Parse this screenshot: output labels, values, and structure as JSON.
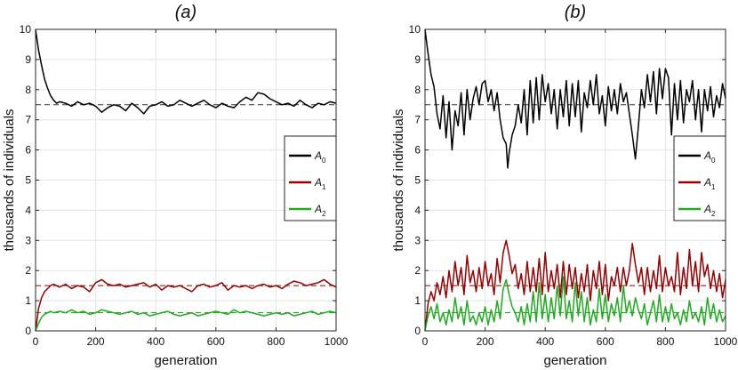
{
  "chart_data": [
    {
      "type": "line",
      "panel_label": "(a)",
      "xlabel": "generation",
      "ylabel": "thousands of individuals",
      "xlim": [
        0,
        1000
      ],
      "ylim": [
        0,
        10
      ],
      "xticks": [
        "0",
        "200",
        "400",
        "600",
        "800",
        "1000"
      ],
      "yticks": [
        "0",
        "1",
        "2",
        "3",
        "4",
        "5",
        "6",
        "7",
        "8",
        "9",
        "10"
      ],
      "grid": true,
      "legend_position": "right-middle",
      "reference_lines": [
        {
          "name": "A0 equilibrium",
          "y": 7.5,
          "color": "#333333"
        },
        {
          "name": "A1 equilibrium",
          "y": 1.5,
          "color": "#8b0000"
        },
        {
          "name": "A2 equilibrium",
          "y": 0.6,
          "color": "#00a000"
        }
      ],
      "series": [
        {
          "name": "A",
          "sub": "0",
          "color": "#000000",
          "x": [
            0,
            10,
            20,
            30,
            40,
            50,
            60,
            70,
            80,
            100,
            120,
            140,
            160,
            180,
            200,
            220,
            240,
            260,
            280,
            300,
            320,
            340,
            360,
            380,
            400,
            420,
            440,
            460,
            480,
            500,
            520,
            540,
            560,
            580,
            600,
            620,
            640,
            660,
            680,
            700,
            720,
            740,
            760,
            780,
            800,
            820,
            840,
            860,
            880,
            900,
            920,
            940,
            960,
            980,
            1000
          ],
          "values": [
            10.0,
            9.3,
            8.8,
            8.35,
            8.05,
            7.8,
            7.65,
            7.55,
            7.6,
            7.55,
            7.45,
            7.6,
            7.5,
            7.55,
            7.45,
            7.25,
            7.4,
            7.5,
            7.45,
            7.3,
            7.55,
            7.4,
            7.2,
            7.45,
            7.5,
            7.6,
            7.45,
            7.5,
            7.65,
            7.55,
            7.45,
            7.55,
            7.65,
            7.5,
            7.4,
            7.55,
            7.45,
            7.4,
            7.6,
            7.75,
            7.65,
            7.9,
            7.85,
            7.7,
            7.6,
            7.5,
            7.55,
            7.45,
            7.65,
            7.5,
            7.4,
            7.55,
            7.5,
            7.6,
            7.55
          ]
        },
        {
          "name": "A",
          "sub": "1",
          "color": "#990000",
          "x": [
            0,
            10,
            20,
            30,
            40,
            50,
            60,
            80,
            100,
            120,
            140,
            160,
            180,
            200,
            220,
            240,
            260,
            280,
            300,
            320,
            340,
            360,
            380,
            400,
            420,
            440,
            460,
            480,
            500,
            520,
            540,
            560,
            580,
            600,
            620,
            640,
            660,
            680,
            700,
            720,
            740,
            760,
            780,
            800,
            820,
            840,
            860,
            880,
            900,
            920,
            940,
            960,
            980,
            1000
          ],
          "values": [
            0.0,
            0.75,
            1.1,
            1.3,
            1.4,
            1.5,
            1.55,
            1.45,
            1.55,
            1.4,
            1.5,
            1.45,
            1.3,
            1.6,
            1.7,
            1.55,
            1.5,
            1.55,
            1.45,
            1.5,
            1.55,
            1.6,
            1.45,
            1.55,
            1.35,
            1.5,
            1.45,
            1.5,
            1.4,
            1.3,
            1.5,
            1.55,
            1.45,
            1.5,
            1.6,
            1.35,
            1.5,
            1.45,
            1.5,
            1.4,
            1.5,
            1.55,
            1.45,
            1.5,
            1.4,
            1.55,
            1.65,
            1.6,
            1.5,
            1.55,
            1.6,
            1.7,
            1.55,
            1.45
          ]
        },
        {
          "name": "A",
          "sub": "2",
          "color": "#22aa22",
          "x": [
            0,
            10,
            20,
            30,
            40,
            50,
            60,
            80,
            100,
            120,
            140,
            160,
            180,
            200,
            220,
            240,
            260,
            280,
            300,
            320,
            340,
            360,
            380,
            400,
            420,
            440,
            460,
            480,
            500,
            520,
            540,
            560,
            580,
            600,
            620,
            640,
            660,
            680,
            700,
            720,
            740,
            760,
            780,
            800,
            820,
            840,
            860,
            880,
            900,
            920,
            940,
            960,
            980,
            1000
          ],
          "values": [
            0.0,
            0.25,
            0.45,
            0.55,
            0.6,
            0.65,
            0.6,
            0.65,
            0.6,
            0.7,
            0.6,
            0.65,
            0.55,
            0.6,
            0.7,
            0.65,
            0.6,
            0.55,
            0.6,
            0.65,
            0.55,
            0.6,
            0.5,
            0.55,
            0.6,
            0.65,
            0.55,
            0.5,
            0.55,
            0.6,
            0.5,
            0.55,
            0.6,
            0.65,
            0.6,
            0.55,
            0.7,
            0.6,
            0.65,
            0.6,
            0.55,
            0.5,
            0.55,
            0.6,
            0.55,
            0.6,
            0.5,
            0.55,
            0.6,
            0.65,
            0.55,
            0.6,
            0.65,
            0.6
          ]
        }
      ]
    },
    {
      "type": "line",
      "panel_label": "(b)",
      "xlabel": "generation",
      "ylabel": "thousands of individuals",
      "xlim": [
        0,
        1000
      ],
      "ylim": [
        0,
        10
      ],
      "xticks": [
        "0",
        "200",
        "400",
        "600",
        "800",
        "1000"
      ],
      "yticks": [
        "0",
        "1",
        "2",
        "3",
        "4",
        "5",
        "6",
        "7",
        "8",
        "9",
        "10"
      ],
      "grid": true,
      "legend_position": "right-middle",
      "reference_lines": [
        {
          "name": "A0 equilibrium",
          "y": 7.5,
          "color": "#333333"
        },
        {
          "name": "A1 equilibrium",
          "y": 1.5,
          "color": "#8b0000"
        },
        {
          "name": "A2 equilibrium",
          "y": 0.6,
          "color": "#00a000"
        }
      ],
      "series": [
        {
          "name": "A",
          "sub": "0",
          "color": "#000000",
          "x": [
            0,
            10,
            20,
            30,
            40,
            50,
            60,
            70,
            80,
            90,
            100,
            110,
            120,
            130,
            140,
            150,
            160,
            170,
            180,
            190,
            200,
            210,
            220,
            230,
            240,
            250,
            260,
            270,
            275,
            280,
            290,
            300,
            310,
            320,
            330,
            340,
            350,
            360,
            370,
            380,
            390,
            400,
            410,
            420,
            430,
            440,
            450,
            460,
            470,
            480,
            490,
            500,
            510,
            520,
            530,
            540,
            550,
            560,
            570,
            580,
            590,
            600,
            610,
            620,
            630,
            640,
            650,
            660,
            670,
            680,
            690,
            700,
            710,
            720,
            730,
            740,
            750,
            760,
            770,
            780,
            790,
            800,
            810,
            820,
            830,
            840,
            850,
            860,
            870,
            880,
            890,
            900,
            910,
            920,
            930,
            940,
            950,
            960,
            970,
            980,
            990,
            1000
          ],
          "values": [
            10.0,
            9.2,
            8.5,
            8.1,
            7.2,
            6.7,
            7.8,
            6.4,
            7.6,
            6.0,
            7.3,
            6.8,
            7.9,
            6.5,
            8.0,
            7.0,
            7.7,
            8.1,
            7.5,
            8.2,
            8.3,
            7.6,
            8.0,
            7.3,
            7.9,
            7.0,
            6.4,
            6.2,
            5.4,
            5.9,
            6.5,
            6.8,
            7.5,
            6.9,
            8.0,
            6.5,
            8.3,
            6.9,
            8.4,
            7.0,
            8.5,
            7.6,
            8.2,
            7.2,
            8.0,
            6.7,
            8.0,
            7.1,
            8.3,
            6.8,
            8.2,
            7.1,
            8.3,
            6.6,
            7.9,
            7.4,
            8.3,
            7.5,
            8.5,
            7.2,
            7.8,
            6.8,
            8.1,
            7.3,
            8.0,
            7.2,
            8.2,
            7.6,
            7.9,
            7.2,
            6.5,
            5.7,
            6.8,
            8.0,
            7.4,
            8.5,
            7.6,
            8.6,
            7.2,
            8.7,
            7.7,
            8.7,
            8.4,
            6.5,
            8.2,
            7.0,
            8.3,
            6.9,
            8.0,
            7.6,
            8.3,
            7.0,
            8.0,
            6.6,
            8.0,
            7.3,
            8.1,
            7.1,
            7.8,
            7.4,
            8.2,
            7.7
          ]
        },
        {
          "name": "A",
          "sub": "1",
          "color": "#990000",
          "x": [
            0,
            10,
            20,
            30,
            40,
            50,
            60,
            70,
            80,
            90,
            100,
            110,
            120,
            130,
            140,
            150,
            160,
            170,
            180,
            190,
            200,
            210,
            220,
            230,
            240,
            250,
            260,
            270,
            280,
            290,
            300,
            310,
            320,
            330,
            340,
            350,
            360,
            370,
            380,
            390,
            400,
            410,
            420,
            430,
            440,
            450,
            460,
            470,
            480,
            490,
            500,
            510,
            520,
            530,
            540,
            550,
            560,
            570,
            580,
            590,
            600,
            610,
            620,
            630,
            640,
            650,
            660,
            670,
            680,
            690,
            700,
            710,
            720,
            730,
            740,
            750,
            760,
            770,
            780,
            790,
            800,
            810,
            820,
            830,
            840,
            850,
            860,
            870,
            880,
            890,
            900,
            910,
            920,
            930,
            940,
            950,
            960,
            970,
            980,
            990,
            1000
          ],
          "values": [
            0.0,
            0.9,
            1.3,
            1.0,
            1.6,
            1.2,
            1.8,
            1.1,
            2.0,
            1.3,
            2.3,
            1.5,
            2.1,
            1.2,
            2.5,
            1.6,
            2.0,
            1.3,
            2.1,
            1.4,
            2.3,
            1.5,
            1.9,
            1.2,
            2.4,
            1.6,
            2.6,
            3.0,
            2.5,
            1.9,
            2.2,
            1.4,
            1.9,
            1.2,
            2.3,
            1.3,
            2.1,
            1.3,
            2.4,
            1.2,
            2.6,
            1.3,
            2.0,
            1.4,
            2.2,
            1.1,
            2.3,
            1.2,
            2.2,
            1.4,
            2.1,
            1.1,
            1.9,
            1.3,
            2.2,
            1.0,
            2.0,
            1.4,
            2.3,
            1.2,
            2.2,
            1.0,
            1.8,
            1.5,
            2.1,
            1.3,
            2.1,
            1.5,
            2.0,
            2.9,
            2.2,
            1.6,
            2.1,
            1.2,
            2.1,
            1.3,
            2.0,
            1.4,
            2.5,
            1.3,
            2.1,
            1.5,
            1.8,
            1.3,
            2.6,
            1.2,
            2.1,
            1.4,
            2.7,
            1.5,
            2.3,
            1.3,
            2.6,
            1.8,
            2.2,
            1.4,
            2.0,
            1.3,
            1.9,
            1.1,
            1.7
          ]
        },
        {
          "name": "A",
          "sub": "2",
          "color": "#22aa22",
          "x": [
            0,
            10,
            20,
            30,
            40,
            50,
            60,
            70,
            80,
            90,
            100,
            110,
            120,
            130,
            140,
            150,
            160,
            170,
            180,
            190,
            200,
            210,
            220,
            230,
            240,
            250,
            260,
            270,
            280,
            290,
            300,
            310,
            320,
            330,
            340,
            350,
            360,
            370,
            380,
            390,
            400,
            410,
            420,
            430,
            440,
            450,
            460,
            470,
            480,
            490,
            500,
            510,
            520,
            530,
            540,
            550,
            560,
            570,
            580,
            590,
            600,
            610,
            620,
            630,
            640,
            650,
            660,
            670,
            680,
            690,
            700,
            710,
            720,
            730,
            740,
            750,
            760,
            770,
            780,
            790,
            800,
            810,
            820,
            830,
            840,
            850,
            860,
            870,
            880,
            890,
            900,
            910,
            920,
            930,
            940,
            950,
            960,
            970,
            980,
            990,
            1000
          ],
          "values": [
            0.0,
            0.5,
            0.8,
            0.4,
            0.9,
            0.3,
            0.6,
            0.2,
            0.7,
            0.3,
            1.1,
            0.4,
            0.8,
            0.2,
            1.0,
            0.3,
            0.5,
            0.2,
            0.6,
            0.3,
            0.8,
            0.2,
            0.7,
            0.3,
            1.0,
            0.4,
            1.4,
            1.7,
            1.2,
            0.8,
            0.6,
            0.3,
            0.8,
            0.2,
            0.9,
            0.3,
            1.3,
            0.3,
            1.6,
            0.4,
            1.2,
            0.3,
            1.1,
            0.4,
            1.5,
            0.5,
            1.8,
            0.4,
            1.0,
            0.3,
            1.6,
            0.5,
            1.3,
            0.3,
            1.1,
            0.2,
            0.7,
            0.3,
            1.4,
            0.4,
            1.2,
            0.3,
            0.9,
            0.5,
            1.1,
            0.3,
            1.5,
            0.6,
            1.0,
            0.5,
            1.1,
            0.7,
            0.4,
            0.9,
            0.2,
            0.6,
            1.0,
            0.3,
            1.2,
            0.3,
            0.8,
            0.3,
            0.9,
            0.4,
            0.6,
            0.2,
            0.7,
            0.3,
            1.0,
            0.4,
            0.6,
            0.3,
            0.8,
            0.2,
            1.1,
            0.4,
            0.9,
            0.3,
            0.7,
            0.3,
            0.5
          ]
        }
      ]
    }
  ]
}
